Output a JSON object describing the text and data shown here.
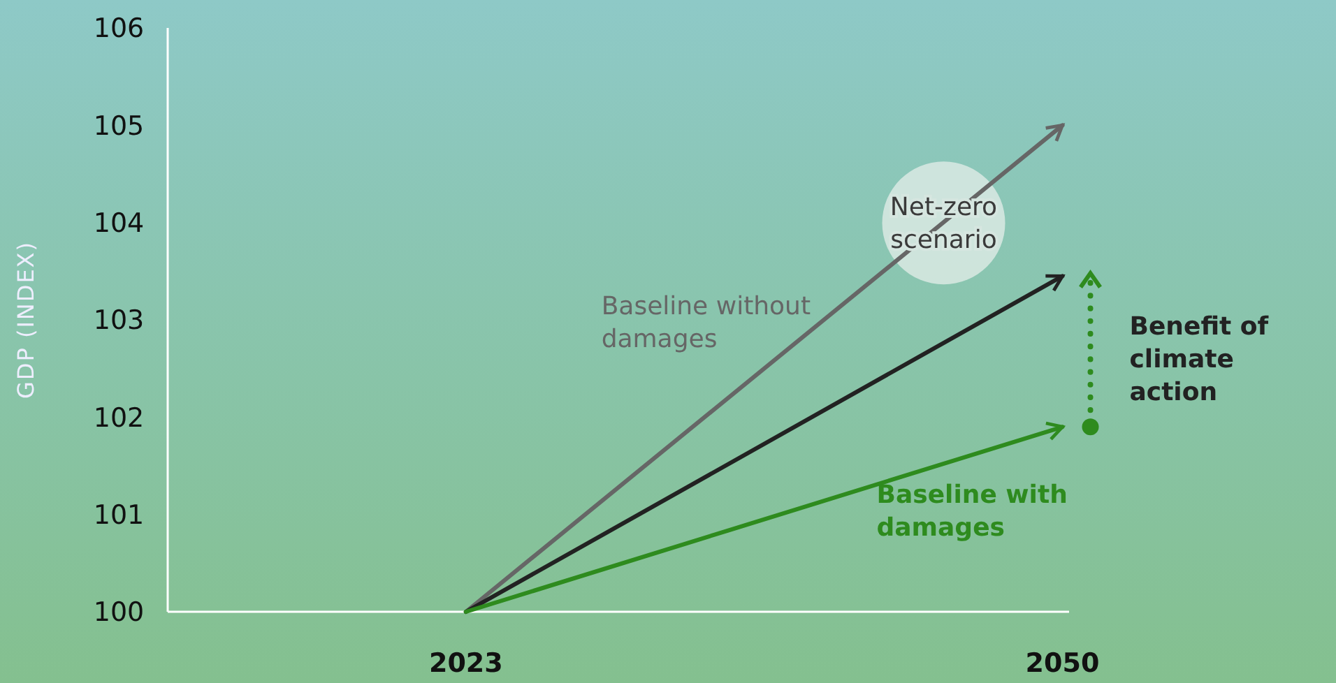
{
  "chart_data": {
    "type": "line",
    "ylabel": "GDP (INDEX)",
    "x": [
      2023,
      2050
    ],
    "xlim": [
      2009.5,
      2050.3
    ],
    "xticks": [
      2023,
      2050
    ],
    "ylim": [
      100,
      106
    ],
    "yticks": [
      100,
      101,
      102,
      103,
      104,
      105,
      106
    ],
    "grid": false,
    "legend": false,
    "marker": "none",
    "line_style": "solid",
    "series": [
      {
        "name": "Baseline without damages",
        "color": "#666666",
        "values": [
          100,
          105
        ]
      },
      {
        "name": "Net-zero scenario",
        "color": "#222222",
        "values": [
          100,
          103.45
        ]
      },
      {
        "name": "Baseline with damages",
        "color": "#2e8b1e",
        "values": [
          100,
          101.9
        ]
      }
    ],
    "annotations": [
      "Benefit of climate action"
    ]
  }
}
